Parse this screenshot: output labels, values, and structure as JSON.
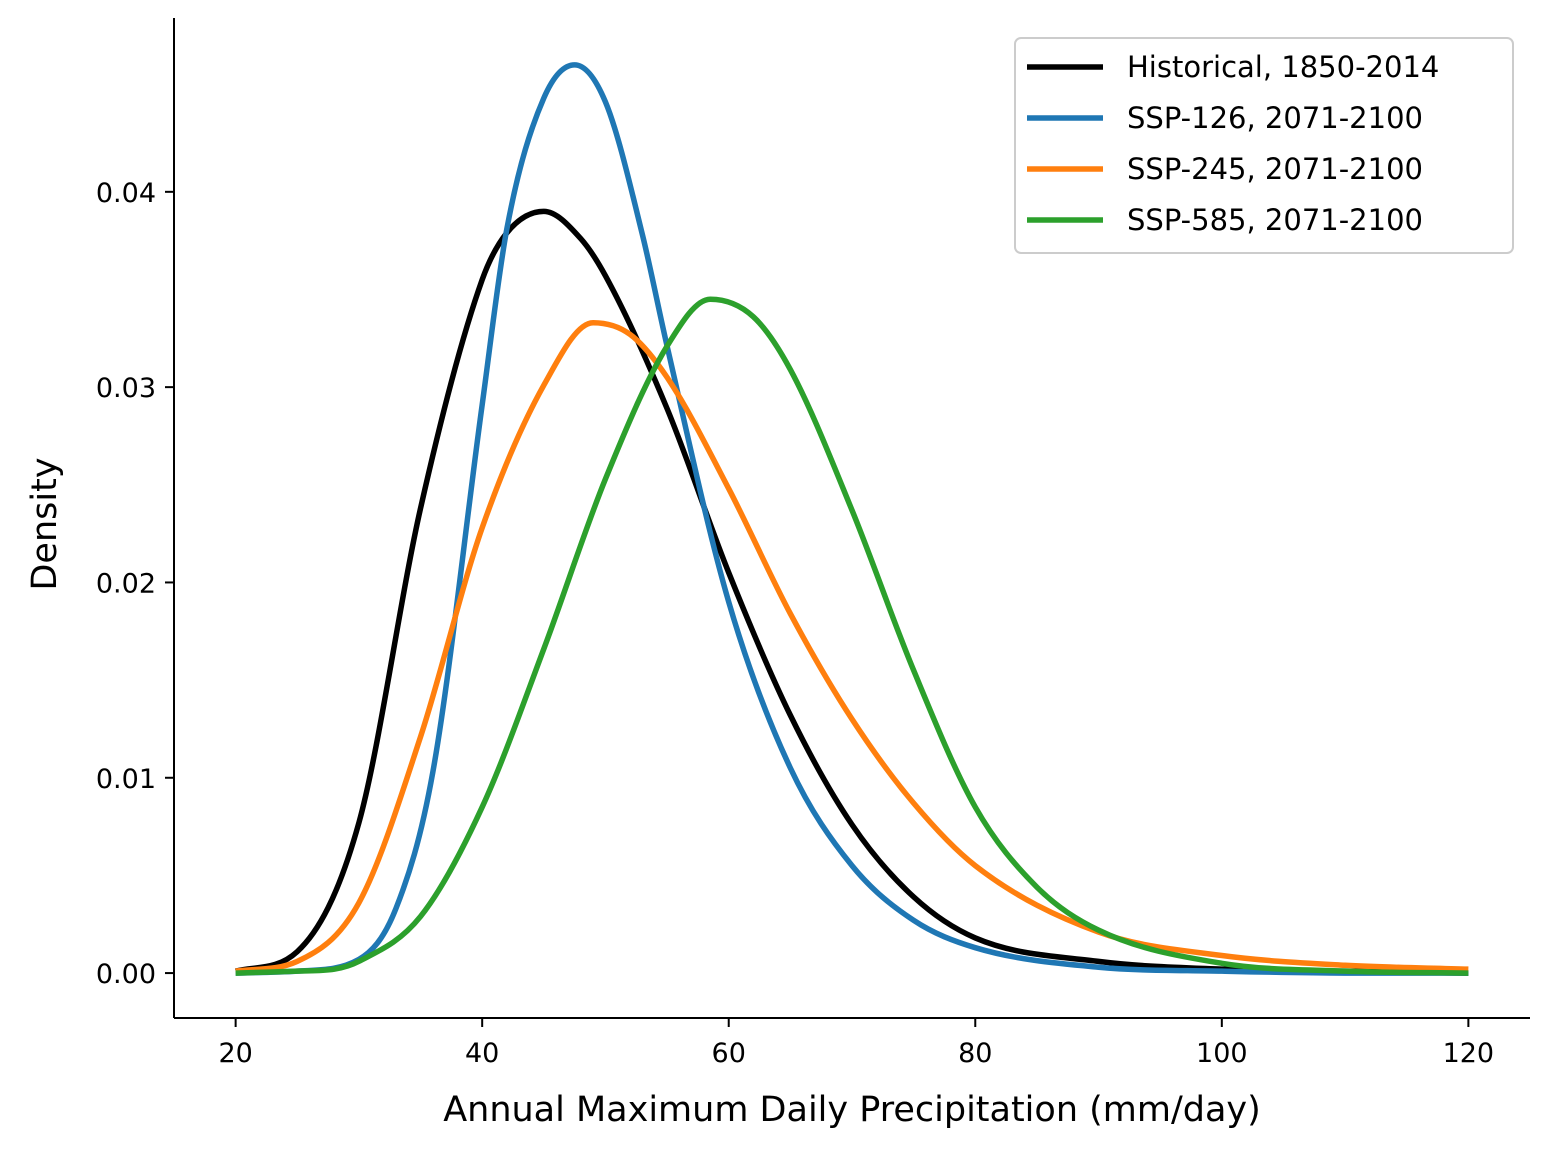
{
  "chart_data": {
    "type": "line",
    "title": "",
    "xlabel": "Annual Maximum Daily Precipitation (mm/day)",
    "ylabel": "Density",
    "xlim": [
      15,
      125
    ],
    "ylim": [
      -0.0023,
      0.0489
    ],
    "xticks": [
      20,
      40,
      60,
      80,
      100,
      120
    ],
    "yticks": [
      0.0,
      0.01,
      0.02,
      0.03,
      0.04
    ],
    "ytick_labels": [
      "0.00",
      "0.01",
      "0.02",
      "0.03",
      "0.04"
    ],
    "grid": false,
    "legend_position": "top-right",
    "series": [
      {
        "name": "Historical, 1850-2014",
        "color": "#000000",
        "x": [
          20,
          25,
          30,
          35,
          40,
          42,
          45,
          48,
          50,
          55,
          60,
          65,
          70,
          75,
          80,
          90,
          100,
          110,
          120
        ],
        "y": [
          0.0001,
          0.0011,
          0.0077,
          0.0238,
          0.0355,
          0.0379,
          0.039,
          0.0376,
          0.0357,
          0.0289,
          0.0205,
          0.0132,
          0.0076,
          0.0039,
          0.0018,
          0.0006,
          0.0002,
          0.0001,
          0.0
        ]
      },
      {
        "name": "SSP-126, 2071-2100",
        "color": "#1f77b4",
        "x": [
          20,
          25,
          30,
          33,
          36,
          40,
          42,
          45,
          47.5,
          50,
          53,
          55,
          60,
          65,
          70,
          75,
          80,
          90,
          100,
          110,
          120
        ],
        "y": [
          0.0,
          0.0001,
          0.0007,
          0.0033,
          0.0103,
          0.0291,
          0.0381,
          0.0448,
          0.0465,
          0.0446,
          0.0378,
          0.0321,
          0.019,
          0.0105,
          0.0055,
          0.0027,
          0.0013,
          0.0003,
          0.0001,
          0.0,
          0.0
        ]
      },
      {
        "name": "SSP-245, 2071-2100",
        "color": "#ff7f0e",
        "x": [
          20,
          25,
          30,
          35,
          40,
          45,
          49,
          52,
          55,
          60,
          65,
          70,
          75,
          80,
          90,
          100,
          110,
          120
        ],
        "y": [
          0.0001,
          0.0006,
          0.0036,
          0.0121,
          0.0228,
          0.0301,
          0.0333,
          0.0327,
          0.0305,
          0.0248,
          0.0184,
          0.013,
          0.0087,
          0.0055,
          0.0021,
          0.0009,
          0.0004,
          0.0002
        ]
      },
      {
        "name": "SSP-585, 2071-2100",
        "color": "#2ca02c",
        "x": [
          20,
          25,
          28,
          30,
          35,
          40,
          45,
          50,
          55,
          58.5,
          62,
          65,
          70,
          75,
          80,
          85,
          90,
          100,
          110,
          120
        ],
        "y": [
          0.0,
          0.0001,
          0.0002,
          0.0006,
          0.0029,
          0.0085,
          0.0166,
          0.0253,
          0.0321,
          0.0345,
          0.0336,
          0.0309,
          0.0237,
          0.0155,
          0.0085,
          0.0044,
          0.0022,
          0.0005,
          0.0001,
          0.0
        ]
      }
    ]
  }
}
